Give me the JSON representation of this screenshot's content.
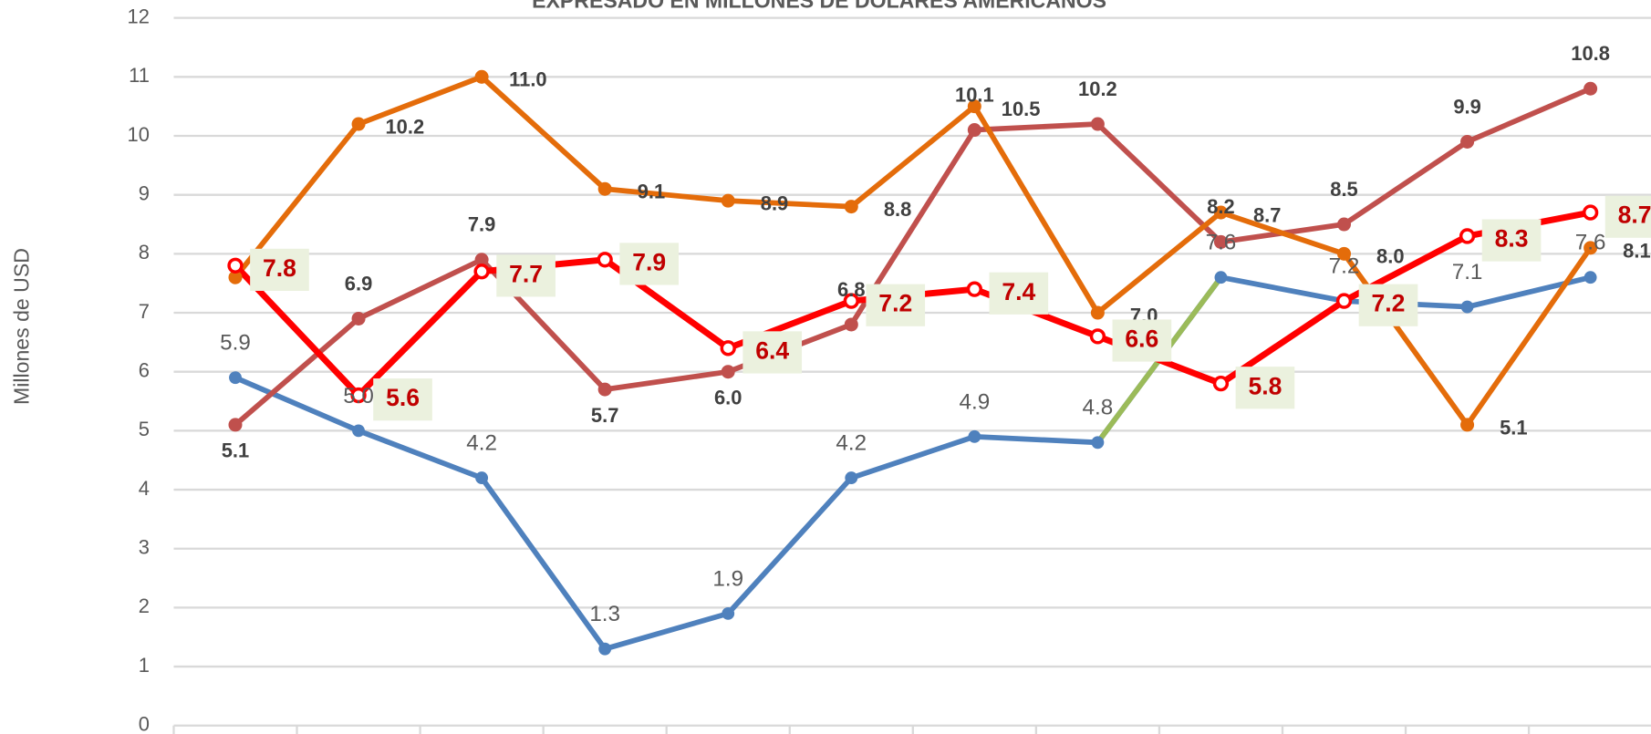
{
  "chart_data": {
    "type": "line",
    "subtitle": "EXPRESADO EN MILLONES DE DOLARES AMERICANOS",
    "y_label": "Millones de USD",
    "categories": [
      null,
      null,
      null,
      null,
      null,
      null,
      null,
      null,
      null,
      null,
      null,
      null
    ],
    "ylim": [
      0,
      12
    ],
    "yticks": [
      0,
      1,
      2,
      3,
      4,
      5,
      6,
      7,
      8,
      9,
      10,
      11,
      12
    ],
    "grid": true,
    "series": [
      {
        "color": "#4f81bd",
        "values": [
          5.9,
          5.0,
          4.2,
          1.3,
          1.9,
          4.2,
          4.9,
          4.8,
          7.6,
          7.2,
          7.1,
          7.6
        ],
        "value_labels": [
          "5.9",
          "5.0",
          "4.2",
          "1.3",
          "1.9",
          "4.2",
          "4.9",
          "4.8",
          "7.6",
          "7.2",
          "7.1",
          "7.6"
        ]
      },
      {
        "color": "#9bbb59",
        "values": [
          null,
          null,
          null,
          null,
          null,
          null,
          null,
          4.8,
          7.6,
          null,
          null,
          null
        ]
      },
      {
        "color": "#c0504d",
        "values": [
          5.1,
          6.9,
          7.9,
          5.7,
          6.0,
          6.8,
          10.1,
          10.2,
          8.2,
          8.5,
          9.9,
          10.8
        ],
        "value_labels": [
          "5.1",
          "6.9",
          "7.9",
          "5.7",
          "6.0",
          "6.8",
          "10.1",
          "10.2",
          "8.2",
          "8.5",
          "9.9",
          "10.8"
        ]
      },
      {
        "color": "#e46c0a",
        "values": [
          7.6,
          10.2,
          11.0,
          9.1,
          8.9,
          8.8,
          10.5,
          7.0,
          8.7,
          8.0,
          5.1,
          8.1
        ],
        "value_labels": [
          null,
          "10.2",
          "11.0",
          "9.1",
          "8.9",
          "8.8",
          "10.5",
          "7.0",
          "8.7",
          "8.0",
          "5.1",
          "8.1"
        ]
      },
      {
        "color": "#ff0000",
        "values": [
          7.8,
          5.6,
          7.7,
          7.9,
          6.4,
          7.2,
          7.4,
          6.6,
          5.8,
          7.2,
          8.3,
          8.7
        ],
        "value_labels": [
          "7.8",
          "5.6",
          "7.7",
          "7.9",
          "6.4",
          "7.2",
          "7.4",
          "6.6",
          "5.8",
          "7.2",
          "8.3",
          "8.7"
        ]
      }
    ]
  }
}
